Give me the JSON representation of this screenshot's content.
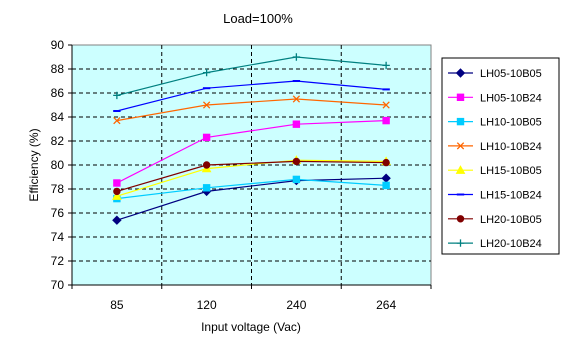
{
  "chart_data": {
    "type": "line",
    "title": "Load=100%",
    "xlabel": "Input voltage (Vac)",
    "ylabel": "Efficiency (%)",
    "categories": [
      "85",
      "120",
      "240",
      "264"
    ],
    "ylim": [
      70,
      90
    ],
    "yticks": [
      70,
      72,
      74,
      76,
      78,
      80,
      82,
      84,
      86,
      88,
      90
    ],
    "grid": true,
    "legend_position": "right",
    "series": [
      {
        "name": "LH05-10B05",
        "values": [
          75.4,
          77.8,
          78.7,
          78.9
        ],
        "color": "#000080",
        "marker": "diamond"
      },
      {
        "name": "LH05-10B24",
        "values": [
          78.5,
          82.3,
          83.4,
          83.7
        ],
        "color": "#ff00ff",
        "marker": "square"
      },
      {
        "name": "LH10-10B05",
        "values": [
          77.2,
          78.1,
          78.8,
          78.3
        ],
        "color": "#00ccff",
        "marker": "square"
      },
      {
        "name": "LH10-10B24",
        "values": [
          83.7,
          85.0,
          85.5,
          85.0
        ],
        "color": "#ff6600",
        "marker": "x"
      },
      {
        "name": "LH15-10B05",
        "values": [
          77.4,
          79.7,
          80.4,
          80.3
        ],
        "color": "#ffff00",
        "marker": "triangle"
      },
      {
        "name": "LH15-10B24",
        "values": [
          84.5,
          86.4,
          87.0,
          86.3
        ],
        "color": "#0000ff",
        "marker": "dash"
      },
      {
        "name": "LH20-10B05",
        "values": [
          77.8,
          80.0,
          80.3,
          80.2
        ],
        "color": "#800000",
        "marker": "circle"
      },
      {
        "name": "LH20-10B24",
        "values": [
          85.8,
          87.7,
          89.0,
          88.3
        ],
        "color": "#008080",
        "marker": "plus"
      }
    ]
  }
}
